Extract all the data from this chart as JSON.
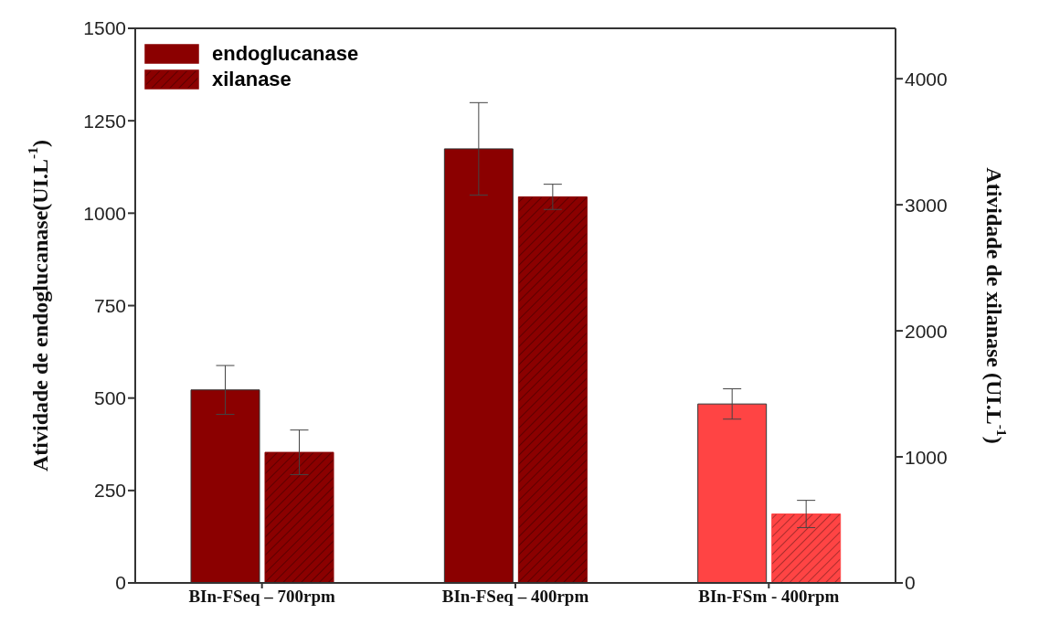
{
  "chart_data": {
    "type": "bar",
    "ylabel": "Atividade de endoglucanase(UI.L$^{-1}$)",
    "y2label": "Atividade de xilanase (UI.L$^{-1}$)",
    "categories": [
      "BIn-FSeq – 700rpm",
      "BIn-FSeq – 400rpm",
      "BIn-FSm - 400rpm"
    ],
    "series": [
      {
        "name": "endoglucanase",
        "colors": [
          "#8b0000",
          "#8b0000",
          "#ff4444"
        ],
        "values": [
          522,
          1174,
          484
        ],
        "errors": [
          66,
          125,
          41
        ]
      },
      {
        "name": "xilanase",
        "axis": "y2",
        "colors": [
          "#8b0000",
          "#8b0000",
          "#ff4444"
        ],
        "values": [
          1036,
          3063,
          547
        ],
        "errors": [
          177,
          100,
          108
        ]
      }
    ],
    "ylim": [
      0,
      1500
    ],
    "yticks": [
      0,
      250,
      500,
      750,
      1000,
      1250,
      1500
    ],
    "y2lim": [
      0,
      4400
    ],
    "y2ticks": [
      0,
      1000,
      2000,
      3000,
      4000
    ],
    "grid": false,
    "legend": "top left"
  }
}
